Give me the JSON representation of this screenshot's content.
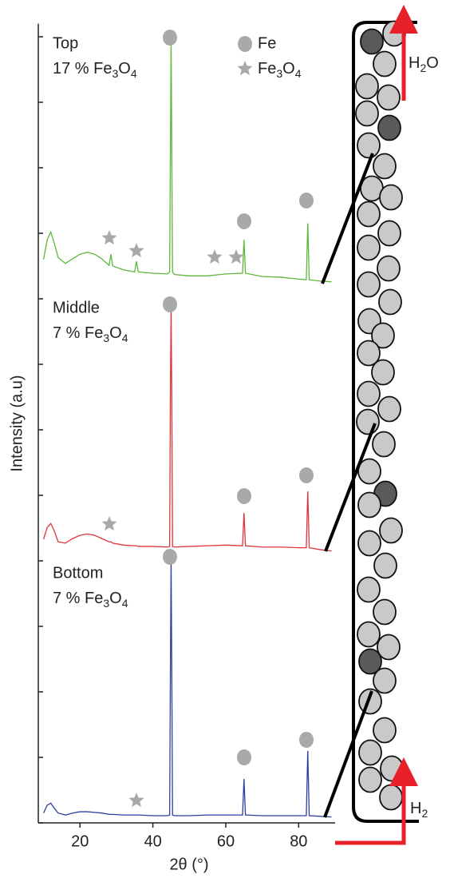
{
  "chart_data": {
    "type": "line",
    "x_label": "2θ (°)",
    "y_label": "Intensity (a.u)",
    "xlim": [
      9,
      90
    ],
    "xticks": [
      20,
      40,
      60,
      80
    ],
    "ylim": [
      0,
      12.2
    ],
    "yticks": [
      0,
      1,
      2,
      3,
      4,
      5,
      6,
      7,
      8,
      9,
      10,
      11,
      12
    ],
    "marker_legend": [
      "Fe",
      "Fe3O4"
    ],
    "x": [
      10,
      11,
      12,
      13,
      14,
      16,
      18,
      20,
      22,
      24,
      26,
      28,
      28.5,
      29,
      32,
      35,
      35.5,
      36,
      40,
      44,
      44.6,
      44.8,
      45,
      45.2,
      45.4,
      46,
      50,
      55,
      60,
      64.6,
      65,
      65.4,
      70,
      75,
      80,
      82.1,
      82.5,
      82.9,
      86,
      89
    ],
    "series": [
      {
        "name": "Top",
        "label": "17 % Fe3O4",
        "color": "#5cb83a",
        "values": [
          8.6,
          8.9,
          9.02,
          8.84,
          8.63,
          8.54,
          8.61,
          8.68,
          8.71,
          8.68,
          8.61,
          8.51,
          8.68,
          8.5,
          8.44,
          8.41,
          8.57,
          8.41,
          8.39,
          8.38,
          8.41,
          10.12,
          12.01,
          10.12,
          8.41,
          8.37,
          8.35,
          8.35,
          8.38,
          8.39,
          8.9,
          8.39,
          8.34,
          8.33,
          8.3,
          8.29,
          9.15,
          8.29,
          8.27,
          8.26
        ]
      },
      {
        "name": "Middle",
        "label": "7 % Fe3O4",
        "color": "#e0323c",
        "values": [
          4.33,
          4.51,
          4.57,
          4.45,
          4.29,
          4.27,
          4.34,
          4.39,
          4.41,
          4.39,
          4.34,
          4.29,
          4.29,
          4.27,
          4.24,
          4.23,
          4.23,
          4.22,
          4.22,
          4.21,
          4.22,
          6.46,
          7.89,
          6.46,
          4.22,
          4.21,
          4.22,
          4.23,
          4.24,
          4.23,
          4.73,
          4.23,
          4.21,
          4.21,
          4.2,
          4.2,
          5.06,
          4.2,
          4.17,
          4.15
        ]
      },
      {
        "name": "Bottom",
        "label": "7 % Fe3O4",
        "color": "#2d3f9e",
        "values": [
          0.15,
          0.27,
          0.3,
          0.22,
          0.15,
          0.12,
          0.15,
          0.17,
          0.17,
          0.16,
          0.15,
          0.13,
          0.13,
          0.13,
          0.12,
          0.12,
          0.12,
          0.12,
          0.11,
          0.11,
          0.12,
          2.2,
          4.02,
          2.2,
          0.12,
          0.11,
          0.11,
          0.12,
          0.12,
          0.12,
          0.67,
          0.12,
          0.11,
          0.11,
          0.11,
          0.11,
          1.1,
          0.11,
          0.1,
          0.09
        ]
      }
    ]
  },
  "diagram": {
    "outlet": "H2O",
    "inlet": "H2"
  }
}
